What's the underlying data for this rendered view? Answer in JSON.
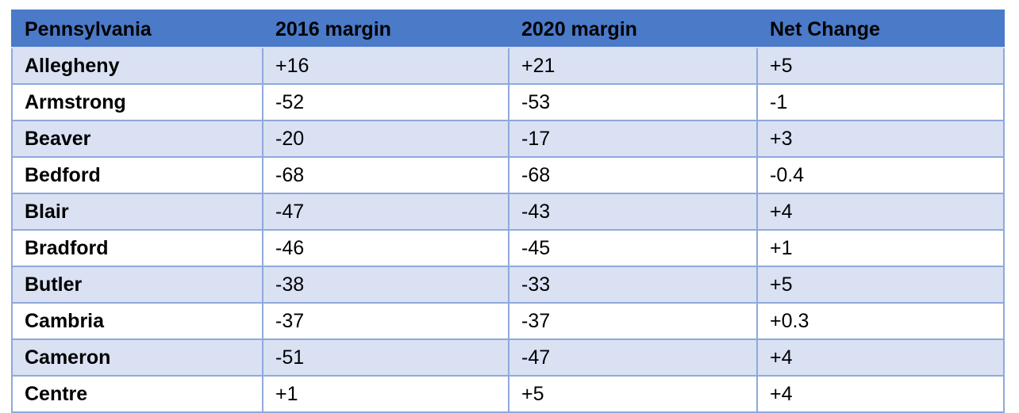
{
  "table": {
    "columns": [
      "Pennsylvania",
      "2016 margin",
      "2020 margin",
      "Net Change"
    ],
    "rows": [
      {
        "county": "Allegheny",
        "margin_2016": "+16",
        "margin_2020": "+21",
        "net_change": "+5"
      },
      {
        "county": "Armstrong",
        "margin_2016": "-52",
        "margin_2020": "-53",
        "net_change": "-1"
      },
      {
        "county": "Beaver",
        "margin_2016": "-20",
        "margin_2020": "-17",
        "net_change": "+3"
      },
      {
        "county": "Bedford",
        "margin_2016": "-68",
        "margin_2020": "-68",
        "net_change": "-0.4"
      },
      {
        "county": "Blair",
        "margin_2016": "-47",
        "margin_2020": "-43",
        "net_change": "+4"
      },
      {
        "county": "Bradford",
        "margin_2016": "-46",
        "margin_2020": "-45",
        "net_change": "+1"
      },
      {
        "county": "Butler",
        "margin_2016": "-38",
        "margin_2020": "-33",
        "net_change": "+5"
      },
      {
        "county": "Cambria",
        "margin_2016": "-37",
        "margin_2020": "-37",
        "net_change": "+0.3"
      },
      {
        "county": "Cameron",
        "margin_2016": "-51",
        "margin_2020": "-47",
        "net_change": "+4"
      },
      {
        "county": "Centre",
        "margin_2016": "+1",
        "margin_2020": "+5",
        "net_change": "+4"
      }
    ]
  },
  "colors": {
    "header_bg": "#4a7ac8",
    "band_alt_bg": "#d9e1f3",
    "band_plain_bg": "#ffffff",
    "border": "#8fa9db",
    "text": "#000000"
  }
}
